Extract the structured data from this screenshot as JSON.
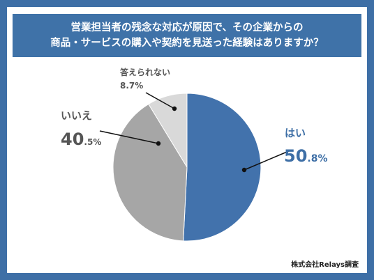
{
  "title_lines": [
    "営業担当者の残念な対応が原因で、その企業からの",
    "商品・サービスの購入や契約を見送った経験はありますか？"
  ],
  "credit": "株式会社Relays調査",
  "colors": {
    "background": "#3e6fa6",
    "title_bar": "#3f72a8",
    "hai": "#4272ac",
    "iie": "#a6a6a6",
    "kotaerarenai": "#d9d9d9"
  },
  "chart_data": {
    "type": "pie",
    "start": "12 o'clock, clockwise",
    "slices": [
      {
        "label": "はい",
        "value": 50.8,
        "int": "50",
        "dec": ".8%"
      },
      {
        "label": "いいえ",
        "value": 40.5,
        "int": "40",
        "dec": ".5%"
      },
      {
        "label": "答えられない",
        "value": 8.7,
        "text": "8.7%"
      }
    ]
  }
}
